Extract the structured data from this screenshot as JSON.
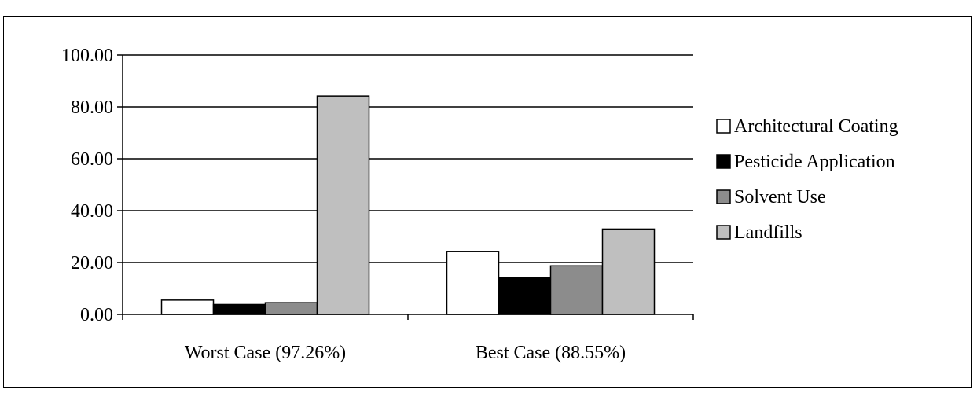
{
  "chart_data": {
    "type": "bar",
    "title": "",
    "xlabel": "",
    "ylabel": "",
    "categories": [
      "Worst Case (97.26%)",
      "Best Case (88.55%)"
    ],
    "series": [
      {
        "name": "Architectural Coating",
        "values": [
          5.5,
          24.3
        ],
        "color": "#ffffff"
      },
      {
        "name": "Pesticide Application",
        "values": [
          3.8,
          14.1
        ],
        "color": "#000000"
      },
      {
        "name": "Solvent Use",
        "values": [
          4.5,
          18.7
        ],
        "color": "#8c8c8c"
      },
      {
        "name": "Landfills",
        "values": [
          84.2,
          32.9
        ],
        "color": "#bfbfbf"
      }
    ],
    "ylim": [
      0,
      100
    ],
    "yticks": [
      "0.00",
      "20.00",
      "40.00",
      "60.00",
      "80.00",
      "100.00"
    ],
    "ytick_values": [
      0,
      20,
      40,
      60,
      80,
      100
    ],
    "grid": true,
    "legend": "right"
  }
}
